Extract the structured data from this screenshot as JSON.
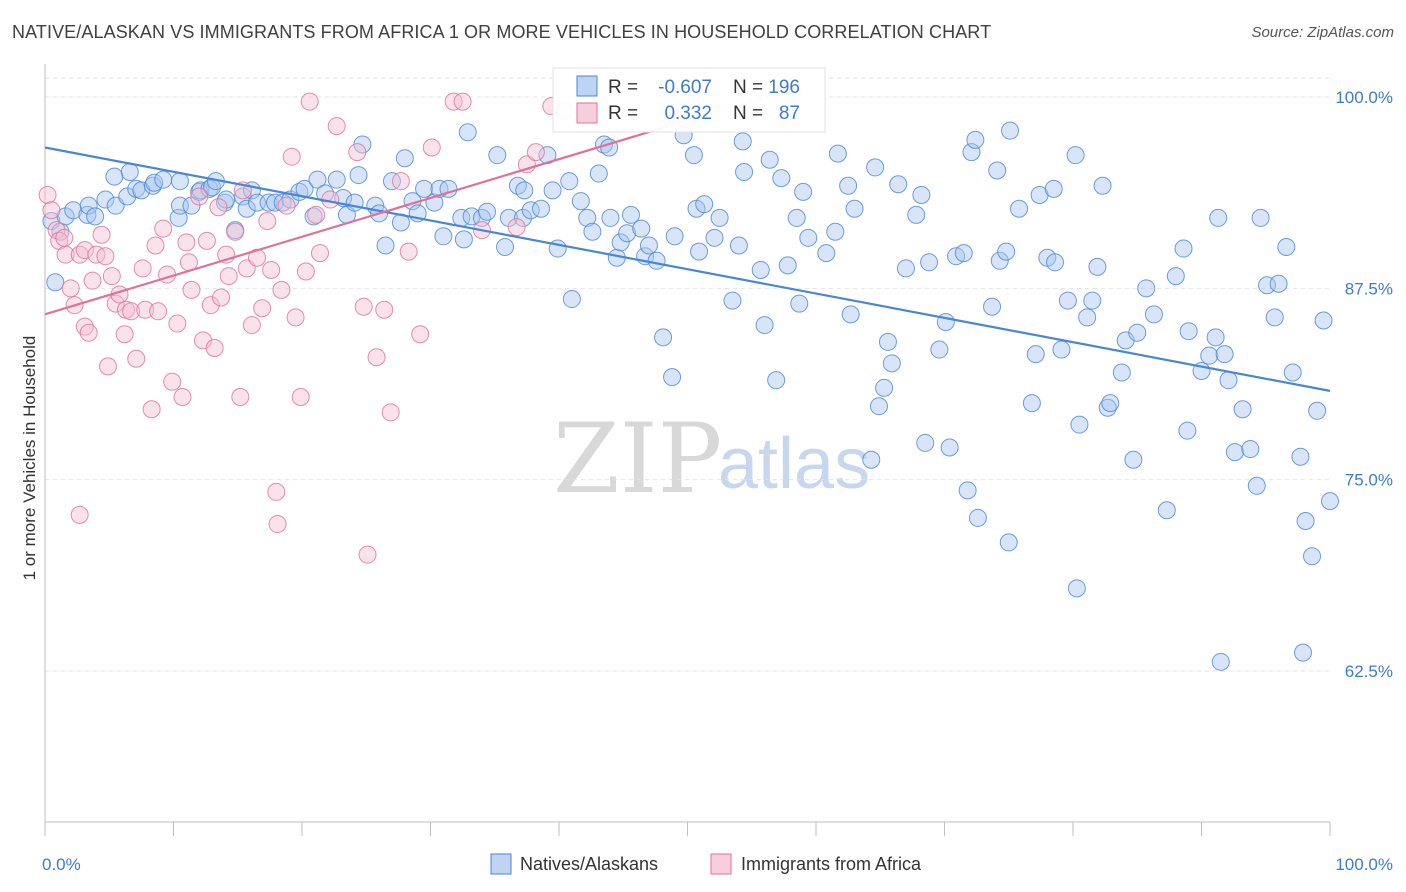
{
  "title": "NATIVE/ALASKAN VS IMMIGRANTS FROM AFRICA 1 OR MORE VEHICLES IN HOUSEHOLD CORRELATION CHART",
  "source": "Source: ZipAtlas.com",
  "watermark": {
    "zip": "ZIP",
    "atlas": "atlas"
  },
  "colors": {
    "blue": "#4a86d8",
    "blue_fill": "#a9c6ef",
    "pink": "#e0719a",
    "pink_fill": "#f4bfd0",
    "tick": "#3d7bd8",
    "grid": "#e2e2e2"
  },
  "stats": {
    "r_label": "R =",
    "n_label": "N =",
    "blue_r": "-0.607",
    "blue_n": "196",
    "pink_r": "0.332",
    "pink_n": "87"
  },
  "chart_data": {
    "type": "scatter",
    "title": "NATIVE/ALASKAN VS IMMIGRANTS FROM AFRICA 1 OR MORE VEHICLES IN HOUSEHOLD CORRELATION CHART",
    "xlabel": "",
    "ylabel": "1 or more Vehicles in Household",
    "xlim": [
      0,
      100
    ],
    "ylim": [
      52,
      101
    ],
    "x_tick_labels": [
      "0.0%",
      "100.0%"
    ],
    "y_ticks": [
      62.5,
      75.0,
      87.5,
      100.0
    ],
    "y_tick_labels": [
      "62.5%",
      "75.0%",
      "87.5%",
      "100.0%"
    ],
    "grid": "horizontal dashed",
    "legend_position": "bottom-center",
    "series": [
      {
        "name": "Natives/Alaskans",
        "color": "#4a86d8",
        "r": -0.607,
        "n": 196,
        "trend": [
          [
            0,
            96.7
          ],
          [
            100,
            80.8
          ]
        ],
        "points": [
          [
            0.5,
            91.9
          ],
          [
            0.8,
            87.9
          ],
          [
            1.2,
            91.2
          ],
          [
            1.6,
            92.2
          ],
          [
            2.2,
            92.6
          ],
          [
            3.3,
            92.3
          ],
          [
            3.4,
            92.9
          ],
          [
            3.9,
            92.2
          ],
          [
            4.7,
            93.3
          ],
          [
            5.5,
            92.9
          ],
          [
            5.4,
            94.8
          ],
          [
            6.4,
            93.5
          ],
          [
            6.6,
            95.1
          ],
          [
            7.1,
            94.0
          ],
          [
            7.5,
            93.9
          ],
          [
            8.4,
            94.2
          ],
          [
            8.5,
            94.4
          ],
          [
            9.2,
            94.6
          ],
          [
            10.4,
            92.1
          ],
          [
            10.5,
            92.9
          ],
          [
            10.5,
            94.5
          ],
          [
            11.4,
            92.9
          ],
          [
            12.0,
            93.8
          ],
          [
            12.1,
            93.9
          ],
          [
            12.8,
            94.0
          ],
          [
            13.0,
            94.1
          ],
          [
            13.3,
            94.5
          ],
          [
            14.0,
            93.1
          ],
          [
            14.1,
            93.3
          ],
          [
            14.8,
            91.3
          ],
          [
            15.4,
            93.5
          ],
          [
            15.7,
            92.7
          ],
          [
            16.1,
            93.9
          ],
          [
            16.5,
            93.1
          ],
          [
            17.4,
            93.1
          ],
          [
            17.9,
            93.1
          ],
          [
            18.5,
            93.1
          ],
          [
            19.1,
            93.3
          ],
          [
            19.8,
            93.8
          ],
          [
            20.2,
            94.0
          ],
          [
            20.9,
            92.2
          ],
          [
            21.2,
            94.6
          ],
          [
            21.8,
            93.7
          ],
          [
            22.7,
            94.6
          ],
          [
            23.2,
            93.4
          ],
          [
            23.5,
            92.3
          ],
          [
            24.1,
            93.1
          ],
          [
            24.4,
            94.9
          ],
          [
            24.7,
            96.9
          ],
          [
            25.7,
            92.9
          ],
          [
            26.0,
            92.4
          ],
          [
            26.5,
            90.3
          ],
          [
            27.0,
            94.5
          ],
          [
            27.7,
            91.8
          ],
          [
            28.0,
            96.0
          ],
          [
            28.6,
            93.2
          ],
          [
            29.0,
            92.4
          ],
          [
            29.5,
            94.0
          ],
          [
            30.3,
            93.1
          ],
          [
            30.7,
            94.0
          ],
          [
            31.0,
            90.9
          ],
          [
            31.4,
            94.0
          ],
          [
            32.4,
            92.1
          ],
          [
            32.6,
            90.7
          ],
          [
            32.9,
            97.7
          ],
          [
            33.2,
            92.2
          ],
          [
            34.0,
            92.1
          ],
          [
            34.4,
            92.5
          ],
          [
            35.2,
            96.2
          ],
          [
            35.8,
            90.2
          ],
          [
            36.1,
            92.1
          ],
          [
            36.8,
            94.2
          ],
          [
            37.2,
            92.1
          ],
          [
            37.3,
            93.9
          ],
          [
            37.8,
            92.6
          ],
          [
            38.6,
            92.7
          ],
          [
            39.1,
            96.2
          ],
          [
            39.5,
            93.9
          ],
          [
            39.9,
            90.1
          ],
          [
            40.8,
            94.5
          ],
          [
            41.0,
            86.8
          ],
          [
            41.7,
            93.2
          ],
          [
            42.2,
            92.1
          ],
          [
            42.6,
            91.2
          ],
          [
            43.1,
            95.0
          ],
          [
            43.5,
            96.9
          ],
          [
            43.9,
            96.7
          ],
          [
            44.0,
            92.1
          ],
          [
            44.5,
            89.5
          ],
          [
            44.8,
            90.5
          ],
          [
            45.3,
            91.1
          ],
          [
            45.6,
            92.3
          ],
          [
            46.4,
            91.4
          ],
          [
            46.7,
            89.6
          ],
          [
            47.0,
            90.3
          ],
          [
            47.6,
            89.3
          ],
          [
            48.1,
            84.3
          ],
          [
            48.8,
            81.7
          ],
          [
            49.0,
            90.9
          ],
          [
            49.7,
            97.5
          ],
          [
            50.5,
            96.2
          ],
          [
            50.7,
            92.7
          ],
          [
            50.9,
            89.9
          ],
          [
            51.3,
            93.0
          ],
          [
            52.1,
            90.8
          ],
          [
            52.5,
            92.1
          ],
          [
            53.5,
            86.7
          ],
          [
            54.0,
            90.3
          ],
          [
            54.3,
            97.1
          ],
          [
            54.4,
            95.1
          ],
          [
            55.7,
            88.7
          ],
          [
            56.0,
            85.1
          ],
          [
            56.4,
            95.9
          ],
          [
            56.9,
            81.5
          ],
          [
            57.3,
            94.7
          ],
          [
            57.8,
            89.0
          ],
          [
            58.5,
            92.1
          ],
          [
            58.7,
            86.5
          ],
          [
            59.0,
            93.8
          ],
          [
            59.4,
            90.8
          ],
          [
            60.8,
            89.8
          ],
          [
            61.5,
            91.2
          ],
          [
            61.7,
            96.3
          ],
          [
            62.5,
            94.2
          ],
          [
            62.7,
            85.8
          ],
          [
            63.0,
            92.7
          ],
          [
            64.3,
            76.3
          ],
          [
            64.6,
            95.4
          ],
          [
            64.9,
            79.8
          ],
          [
            65.3,
            81.0
          ],
          [
            65.6,
            84.0
          ],
          [
            65.9,
            82.6
          ],
          [
            66.4,
            94.3
          ],
          [
            67.0,
            88.8
          ],
          [
            67.8,
            92.3
          ],
          [
            68.2,
            93.6
          ],
          [
            68.8,
            89.2
          ],
          [
            69.6,
            83.5
          ],
          [
            70.1,
            85.3
          ],
          [
            70.9,
            89.6
          ],
          [
            71.5,
            89.8
          ],
          [
            71.8,
            74.3
          ],
          [
            72.1,
            96.4
          ],
          [
            72.4,
            97.2
          ],
          [
            72.6,
            72.5
          ],
          [
            73.7,
            86.3
          ],
          [
            74.1,
            95.2
          ],
          [
            74.3,
            89.3
          ],
          [
            74.8,
            89.9
          ],
          [
            75.1,
            97.8
          ],
          [
            75.8,
            92.7
          ],
          [
            76.8,
            80.0
          ],
          [
            77.1,
            83.2
          ],
          [
            77.4,
            93.6
          ],
          [
            78.0,
            89.5
          ],
          [
            78.6,
            89.2
          ],
          [
            79.1,
            83.5
          ],
          [
            79.6,
            86.7
          ],
          [
            80.2,
            96.2
          ],
          [
            80.5,
            78.6
          ],
          [
            81.1,
            85.6
          ],
          [
            81.5,
            86.7
          ],
          [
            81.9,
            88.9
          ],
          [
            82.3,
            94.2
          ],
          [
            82.7,
            79.7
          ],
          [
            82.9,
            80.0
          ],
          [
            83.8,
            82.0
          ],
          [
            84.1,
            84.1
          ],
          [
            85.0,
            84.6
          ],
          [
            85.7,
            87.5
          ],
          [
            86.3,
            85.8
          ],
          [
            87.3,
            73.0
          ],
          [
            88.0,
            88.3
          ],
          [
            88.6,
            90.1
          ],
          [
            89.0,
            84.7
          ],
          [
            90.0,
            82.1
          ],
          [
            90.6,
            83.1
          ],
          [
            91.1,
            84.3
          ],
          [
            91.3,
            92.1
          ],
          [
            91.8,
            83.2
          ],
          [
            92.1,
            81.5
          ],
          [
            92.6,
            76.8
          ],
          [
            93.2,
            79.6
          ],
          [
            93.8,
            77.0
          ],
          [
            94.3,
            74.6
          ],
          [
            94.6,
            92.1
          ],
          [
            95.1,
            87.7
          ],
          [
            95.7,
            85.6
          ],
          [
            96.0,
            87.8
          ],
          [
            96.6,
            90.2
          ],
          [
            97.1,
            82.0
          ],
          [
            97.7,
            76.5
          ],
          [
            98.1,
            72.3
          ],
          [
            98.6,
            70.0
          ],
          [
            99.0,
            79.5
          ],
          [
            99.5,
            85.4
          ],
          [
            100.0,
            73.6
          ],
          [
            97.9,
            63.7
          ],
          [
            91.5,
            63.1
          ],
          [
            70.4,
            77.1
          ],
          [
            75.0,
            70.9
          ],
          [
            80.3,
            67.9
          ],
          [
            78.5,
            94.0
          ],
          [
            84.7,
            76.3
          ],
          [
            68.5,
            77.4
          ],
          [
            88.9,
            78.2
          ]
        ]
      },
      {
        "name": "Immigrants from Africa",
        "color": "#e0719a",
        "r": 0.332,
        "n": 87,
        "trend": [
          [
            0,
            85.8
          ],
          [
            58,
            100.5
          ]
        ],
        "points": [
          [
            0.2,
            93.6
          ],
          [
            0.5,
            92.6
          ],
          [
            0.9,
            91.3
          ],
          [
            1.1,
            90.6
          ],
          [
            1.5,
            90.8
          ],
          [
            1.6,
            89.7
          ],
          [
            2.0,
            87.5
          ],
          [
            2.3,
            86.4
          ],
          [
            2.7,
            89.7
          ],
          [
            3.1,
            90.0
          ],
          [
            3.1,
            85.0
          ],
          [
            3.4,
            84.6
          ],
          [
            3.7,
            88.0
          ],
          [
            4.0,
            89.7
          ],
          [
            4.4,
            91.0
          ],
          [
            4.7,
            89.6
          ],
          [
            4.9,
            82.4
          ],
          [
            5.2,
            88.3
          ],
          [
            5.5,
            86.5
          ],
          [
            5.8,
            87.1
          ],
          [
            6.2,
            84.5
          ],
          [
            6.3,
            86.1
          ],
          [
            6.7,
            86.0
          ],
          [
            7.1,
            82.9
          ],
          [
            7.6,
            88.8
          ],
          [
            7.8,
            86.1
          ],
          [
            8.3,
            79.6
          ],
          [
            8.6,
            90.3
          ],
          [
            8.8,
            86.0
          ],
          [
            9.2,
            91.4
          ],
          [
            9.5,
            88.4
          ],
          [
            9.9,
            81.4
          ],
          [
            10.3,
            85.2
          ],
          [
            10.7,
            80.4
          ],
          [
            11.0,
            90.5
          ],
          [
            11.2,
            89.2
          ],
          [
            11.4,
            87.4
          ],
          [
            12.0,
            93.5
          ],
          [
            12.3,
            84.1
          ],
          [
            12.6,
            90.6
          ],
          [
            12.9,
            86.4
          ],
          [
            13.2,
            83.6
          ],
          [
            13.5,
            92.8
          ],
          [
            13.7,
            86.9
          ],
          [
            14.1,
            89.7
          ],
          [
            14.3,
            88.3
          ],
          [
            14.8,
            91.2
          ],
          [
            15.2,
            80.4
          ],
          [
            15.4,
            93.9
          ],
          [
            15.7,
            88.8
          ],
          [
            16.1,
            85.1
          ],
          [
            16.5,
            89.5
          ],
          [
            16.9,
            86.2
          ],
          [
            17.3,
            91.9
          ],
          [
            17.6,
            88.7
          ],
          [
            18.0,
            74.2
          ],
          [
            18.1,
            72.1
          ],
          [
            18.4,
            87.4
          ],
          [
            18.8,
            92.9
          ],
          [
            19.2,
            96.1
          ],
          [
            19.5,
            85.6
          ],
          [
            19.9,
            80.4
          ],
          [
            20.3,
            88.6
          ],
          [
            20.6,
            99.7
          ],
          [
            21.1,
            92.3
          ],
          [
            21.4,
            89.8
          ],
          [
            22.2,
            93.3
          ],
          [
            22.7,
            98.1
          ],
          [
            24.3,
            96.4
          ],
          [
            24.8,
            86.3
          ],
          [
            25.1,
            70.1
          ],
          [
            25.8,
            83.0
          ],
          [
            26.4,
            86.1
          ],
          [
            26.9,
            79.4
          ],
          [
            27.7,
            94.5
          ],
          [
            28.3,
            89.9
          ],
          [
            29.2,
            84.5
          ],
          [
            30.1,
            96.7
          ],
          [
            31.8,
            99.7
          ],
          [
            32.5,
            99.7
          ],
          [
            34.0,
            91.3
          ],
          [
            36.7,
            91.5
          ],
          [
            37.5,
            95.6
          ],
          [
            38.2,
            96.4
          ],
          [
            39.4,
            99.4
          ],
          [
            40.4,
            99.1
          ],
          [
            2.7,
            72.7
          ]
        ]
      }
    ]
  },
  "legend": [
    {
      "label": "Natives/Alaskans",
      "swatch": "blue"
    },
    {
      "label": "Immigrants from Africa",
      "swatch": "pink"
    }
  ]
}
